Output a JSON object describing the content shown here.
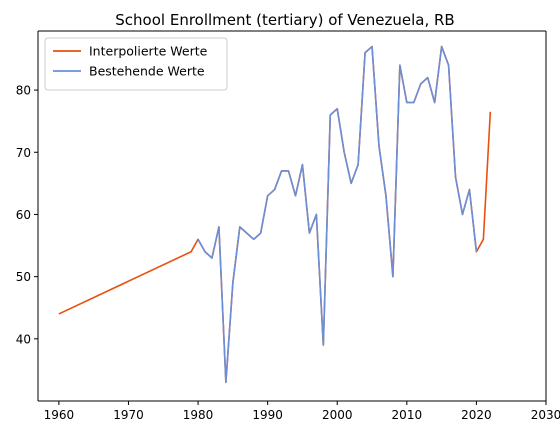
{
  "chart_data": {
    "type": "line",
    "title": "School Enrollment (tertiary) of Venezuela, RB",
    "xlabel": "",
    "ylabel": "",
    "xlim": [
      1957,
      2030
    ],
    "ylim": [
      30,
      89.5
    ],
    "x_ticks": [
      1960,
      1970,
      1980,
      1990,
      2000,
      2010,
      2020,
      2030
    ],
    "y_ticks": [
      40,
      50,
      60,
      70,
      80
    ],
    "grid": false,
    "legend_position": "top-left",
    "series": [
      {
        "name": "Interpolierte Werte",
        "color": "#e8500f",
        "x": [
          1960,
          1979,
          1980,
          1981,
          1982,
          1983,
          1984,
          1985,
          1986,
          1987,
          1988,
          1989,
          1990,
          1991,
          1992,
          1993,
          1994,
          1995,
          1996,
          1997,
          1998,
          1999,
          2000,
          2001,
          2002,
          2003,
          2004,
          2005,
          2006,
          2007,
          2008,
          2009,
          2010,
          2011,
          2012,
          2013,
          2014,
          2015,
          2016,
          2017,
          2018,
          2019,
          2020,
          2021,
          2022
        ],
        "y": [
          44,
          54,
          56,
          54,
          53,
          58,
          33,
          49,
          58,
          57,
          56,
          57,
          63,
          64,
          67,
          67,
          63,
          68,
          57,
          60,
          39,
          76,
          77,
          70,
          65,
          68,
          86,
          87,
          71,
          63,
          50,
          84,
          78,
          78,
          81,
          82,
          78,
          87,
          84,
          66,
          60,
          64,
          54,
          56,
          76.5
        ]
      },
      {
        "name": "Bestehende Werte",
        "color": "#6a8fd8",
        "x": [
          1980,
          1981,
          1982,
          1983,
          1984,
          1985,
          1986,
          1987,
          1988,
          1989,
          1990,
          1991,
          1992,
          1993,
          1994,
          1995,
          1996,
          1997,
          1998,
          1999,
          2000,
          2001,
          2002,
          2003,
          2004,
          2005,
          2006,
          2007,
          2008,
          2009,
          2010,
          2011,
          2012,
          2013,
          2014,
          2015,
          2016,
          2017,
          2018,
          2019,
          2020
        ],
        "y": [
          56,
          54,
          53,
          58,
          33,
          49,
          58,
          57,
          56,
          57,
          63,
          64,
          67,
          67,
          63,
          68,
          57,
          60,
          39,
          76,
          77,
          70,
          65,
          68,
          86,
          87,
          71,
          63,
          50,
          84,
          78,
          78,
          81,
          82,
          78,
          87,
          84,
          66,
          60,
          64,
          54
        ]
      }
    ]
  }
}
